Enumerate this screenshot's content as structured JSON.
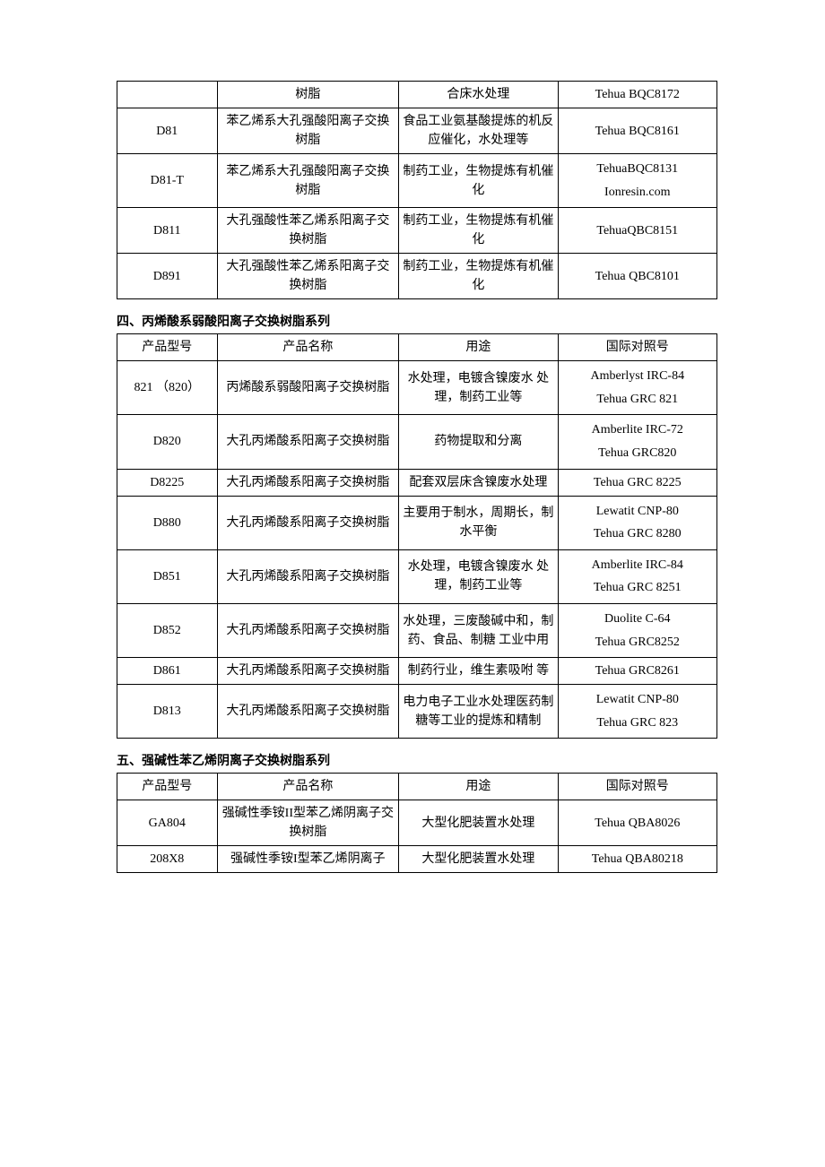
{
  "t1": {
    "rows": [
      {
        "m": "",
        "n": "树脂",
        "u": "合床水处理",
        "r": "Tehua BQC8172"
      },
      {
        "m": "D81",
        "n": "苯乙烯系大孔强酸阳离子交换 树脂",
        "u": "食品工业氨基酸提炼的机反应催化，水处理等",
        "r": "Tehua BQC8161"
      },
      {
        "m": "D81-T",
        "n": "苯乙烯系大孔强酸阳离子交换 树脂",
        "u": "制药工业，生物提炼有机催化",
        "r1": "TehuaBQC8131",
        "r2": "Ionresin.com"
      },
      {
        "m": "D811",
        "n": "大孔强酸性苯乙烯系阳离子交 换树脂",
        "u": "制药工业，生物提炼有机催化",
        "r": "TehuaQBC8151"
      },
      {
        "m": "D891",
        "n": "大孔强酸性苯乙烯系阳离子交 换树脂",
        "u": "制药工业，生物提炼有机催化",
        "r": "Tehua QBC8101"
      }
    ]
  },
  "sec4": "四、丙烯酸系弱酸阳离子交换树脂系列",
  "t2": {
    "head": {
      "m": "产品型号",
      "n": "产品名称",
      "u": "用途",
      "r": "国际对照号"
    },
    "rows": [
      {
        "m": "821 （820）",
        "n": "丙烯酸系弱酸阳离子交换树脂",
        "u": "水处理，电镀含镍废水 处理，制药工业等",
        "r1": "Amberlyst IRC-84",
        "r2": "Tehua GRC 821"
      },
      {
        "m": "D820",
        "n": "大孔丙烯酸系阳离子交换树脂",
        "u": "药物提取和分离",
        "r1": "Amberlite IRC-72",
        "r2": "Tehua GRC820"
      },
      {
        "m": "D8225",
        "n": "大孔丙烯酸系阳离子交换树脂",
        "u": "配套双层床含镍废水处理",
        "r": "Tehua GRC 8225"
      },
      {
        "m": "D880",
        "n": "大孔丙烯酸系阳离子交换树脂",
        "u": "主要用于制水，周期长，制水平衡",
        "r1": "Lewatit CNP-80",
        "r2": "Tehua GRC 8280"
      },
      {
        "m": "D851",
        "n": "大孔丙烯酸系阳离子交换树脂",
        "u": "水处理，电镀含镍废水 处理，制药工业等",
        "r1": "Amberlite IRC-84",
        "r2": "Tehua GRC 8251"
      },
      {
        "m": "D852",
        "n": "大孔丙烯酸系阳离子交换树脂",
        "u": "水处理，三废酸碱中和，制药、食品、制糖 工业中用",
        "r1": "Duolite C-64",
        "r2": "Tehua GRC8252"
      },
      {
        "m": "D861",
        "n": "大孔丙烯酸系阳离子交换树脂",
        "u": "制药行业，维生素吸咐 等",
        "r": "Tehua GRC8261"
      },
      {
        "m": "D813",
        "n": "大孔丙烯酸系阳离子交换树脂",
        "u": "电力电子工业水处理医药制糖等工业的提炼和精制",
        "r1": "Lewatit CNP-80",
        "r2": "Tehua GRC 823"
      }
    ]
  },
  "sec5": "五、强碱性苯乙烯阴离子交换树脂系列",
  "t3": {
    "head": {
      "m": "产品型号",
      "n": "产品名称",
      "u": "用途",
      "r": "国际对照号"
    },
    "rows": [
      {
        "m": "GA804",
        "n": "强碱性季铵II型苯乙烯阴离子交换树脂",
        "u": "大型化肥装置水处理",
        "r": "Tehua QBA8026"
      },
      {
        "m": "208X8",
        "n": "强碱性季铵I型苯乙烯阴离子",
        "u": "大型化肥装置水处理",
        "r": "Tehua QBA80218"
      }
    ]
  }
}
